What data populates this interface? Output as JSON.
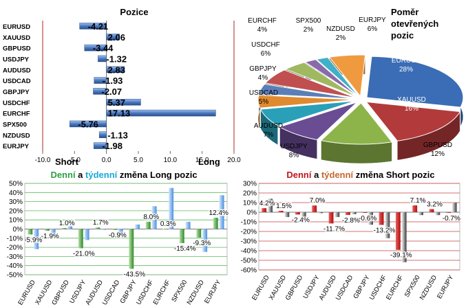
{
  "colors": {
    "green": "#2ea043",
    "cyan": "#17a9d6",
    "red": "#c0151b",
    "orange": "#c8662a",
    "blue_bar": "#4a78c0",
    "green_bar": "#4aa43c",
    "red_bar": "#c41e1e",
    "gray_bar": "#8a8a8a",
    "grid_green": "#5cb85c",
    "grid_red": "#c84040"
  },
  "chart_data": [
    {
      "id": "pozice",
      "type": "bar",
      "orientation": "horizontal",
      "title": "Pozice",
      "categories": [
        "EURUSD",
        "XAUUSD",
        "GBPUSD",
        "USDJPY",
        "AUDUSD",
        "USDCAD",
        "GBPJPY",
        "USDCHF",
        "EURCHF",
        "SPX500",
        "NZDUSD",
        "EURJPY"
      ],
      "values": [
        -4.21,
        2.06,
        -3.44,
        -1.32,
        2.83,
        -1.93,
        -2.07,
        5.37,
        17.13,
        -5.76,
        -1.13,
        -1.98
      ],
      "value_labels": [
        "-4.21",
        "2.06",
        "-3.44",
        "-1.32",
        "2.83",
        "-1.93",
        "-2.07",
        "5.37",
        "17.13",
        "-5.76",
        "-1.13",
        "-1.98"
      ],
      "xlim": [
        -10,
        20
      ],
      "xticks": [
        "-10.0",
        "-5.0",
        "0.0",
        "5.0",
        "10.0",
        "15.0",
        "20.0"
      ],
      "short_label": "Short",
      "long_label": "Long"
    },
    {
      "id": "pomer",
      "type": "pie",
      "title_lines": [
        "Poměr",
        "otevřených",
        "pozic"
      ],
      "slices": [
        {
          "name": "EURUSD",
          "value": 28,
          "label": "28%",
          "color": "#3a6db5"
        },
        {
          "name": "XAUUSD",
          "value": 16,
          "label": "16%",
          "color": "#b33a3a"
        },
        {
          "name": "GBPUSD",
          "value": 12,
          "label": "12%",
          "color": "#8db44a"
        },
        {
          "name": "USDJPY",
          "value": 8,
          "label": "8%",
          "color": "#6a4c93"
        },
        {
          "name": "AUDUSD",
          "value": 7,
          "label": "7%",
          "color": "#2aa0b8"
        },
        {
          "name": "USDCAD",
          "value": 5,
          "label": "5%",
          "color": "#e08a30"
        },
        {
          "name": "GBPJPY",
          "value": 4,
          "label": "4%",
          "color": "#5a7fb8"
        },
        {
          "name": "USDCHF",
          "value": 6,
          "label": "6%",
          "color": "#c05050"
        },
        {
          "name": "EURCHF",
          "value": 4,
          "label": "4%",
          "color": "#a0b860"
        },
        {
          "name": "SPX500",
          "value": 2,
          "label": "2%",
          "color": "#8a6aaa"
        },
        {
          "name": "NZDUSD",
          "value": 2,
          "label": "2%",
          "color": "#40b0c8"
        },
        {
          "name": "EURJPY",
          "value": 6,
          "label": "6%",
          "color": "#f09a40"
        }
      ]
    },
    {
      "id": "long",
      "type": "bar",
      "title_parts": [
        "Denní",
        " a ",
        "týdenní",
        " změna Long pozic"
      ],
      "categories": [
        "EURUSD",
        "XAUUSD",
        "GBPUSD",
        "USDJPY",
        "AUDUSD",
        "USDCAD",
        "GBPJPY",
        "USDCHF",
        "EURCHF",
        "SPX500",
        "NZDUSD",
        "EURJPY"
      ],
      "series": [
        {
          "name": "Denní",
          "values": [
            -5.9,
            -1.9,
            1.0,
            -21.0,
            1.7,
            -0.9,
            -43.5,
            8.0,
            0.3,
            -15.4,
            -9.3,
            12.4
          ]
        },
        {
          "name": "Týdenní",
          "values": [
            -22,
            -10,
            3,
            -12,
            0,
            -8,
            5,
            25,
            45,
            8,
            -25,
            37
          ]
        }
      ],
      "data_labels": [
        "-5.9%",
        "-1.9%",
        "1.0%",
        "-21.0%",
        "1.7%",
        "-0.9%",
        "-43.5%",
        "8.0%",
        "0.3%",
        "-15.4%",
        "-9.3%",
        "12.4%"
      ],
      "ylim": [
        -50,
        50
      ],
      "yticks": [
        "50%",
        "40%",
        "30%",
        "20%",
        "10%",
        "0%",
        "-10%",
        "-20%",
        "-30%",
        "-40%",
        "-50%"
      ]
    },
    {
      "id": "short",
      "type": "bar",
      "title_parts": [
        "Denní",
        " a ",
        "týdenní",
        " změna Short pozic"
      ],
      "categories": [
        "EURUSD",
        "XAUUSD",
        "GBPUSD",
        "USDJPY",
        "AUDUSD",
        "USDCAD",
        "GBPJPY",
        "USDCHF",
        "EURCHF",
        "SPX500",
        "NZDUSD",
        "EURJPY"
      ],
      "series": [
        {
          "name": "Denní",
          "values": [
            4.2,
            1.5,
            -2.4,
            7.0,
            -11.7,
            -2.8,
            -0.6,
            -13.2,
            -39.1,
            7.1,
            3.2,
            -0.7
          ]
        },
        {
          "name": "Týdenní",
          "values": [
            14,
            -5,
            -5,
            -1,
            -5,
            -2,
            -13,
            -27,
            -52,
            -3,
            -3,
            10
          ]
        }
      ],
      "data_labels": [
        "4.2%",
        "1.5%",
        "-2.4%",
        "7.0%",
        "-11.7%",
        "-2.8%",
        "-0.6%",
        "-13.2%",
        "-39.1%",
        "7.1%",
        "3.2%",
        "-0.7%"
      ],
      "ylim": [
        -60,
        30
      ],
      "yticks": [
        "30%",
        "20%",
        "10%",
        "0%",
        "-10%",
        "-20%",
        "-30%",
        "-40%",
        "-50%",
        "-60%"
      ]
    }
  ]
}
